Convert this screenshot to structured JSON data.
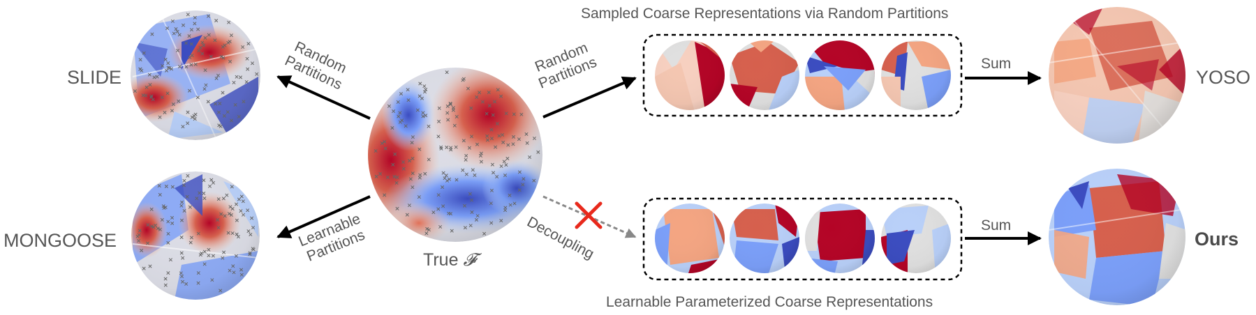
{
  "labels": {
    "slide": "SLIDE",
    "mongoose": "MONGOOSE",
    "yoso": "YOSO",
    "ours": "Ours",
    "true_f_text": "True",
    "true_f_symbol": "𝓕",
    "sampled_title": "Sampled Coarse Representations via Random Partitions",
    "learnable_title": "Learnable Parameterized Coarse Representations",
    "random_partitions_1a": "Random",
    "random_partitions_1b": "Partitions",
    "random_partitions_2a": "Random",
    "random_partitions_2b": "Partitions",
    "learnable_partitions_a": "Learnable",
    "learnable_partitions_b": "Partitions",
    "decoupling": "Decoupling",
    "sum_top": "Sum",
    "sum_bottom": "Sum"
  },
  "colors": {
    "red_dark": "#b40426",
    "red": "#d6604d",
    "orange": "#f4a582",
    "pink": "#f7d0c0",
    "gray": "#e0e0e0",
    "light_blue": "#b9d0f9",
    "blue": "#7b9ff9",
    "blue_dark": "#3b4cc0",
    "cross": "#e8291c",
    "text": "#555555"
  }
}
